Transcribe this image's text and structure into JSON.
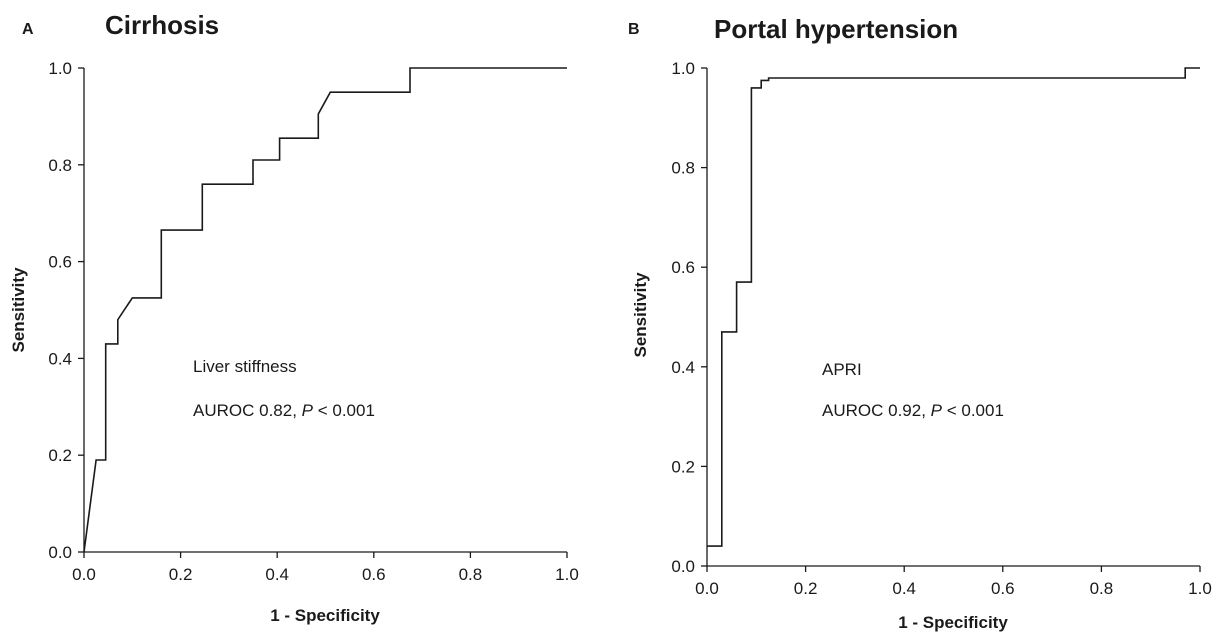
{
  "chart_data": [
    {
      "type": "line",
      "panel": "A",
      "title": "Cirrhosis",
      "xlabel": "1 - Specificity",
      "ylabel": "Sensitivity",
      "xlim": [
        0,
        1
      ],
      "ylim": [
        0,
        1
      ],
      "xticks": [
        "0.0",
        "0.2",
        "0.4",
        "0.6",
        "0.8",
        "1.0"
      ],
      "yticks": [
        "0.0",
        "0.2",
        "0.4",
        "0.6",
        "0.8",
        "1.0"
      ],
      "annotation": {
        "line1": "Liver stiffness",
        "prefix": "AUROC 0.82, ",
        "p": "P",
        "suffix": " < 0.001"
      },
      "series": [
        {
          "x": [
            0.0,
            0.025,
            0.045,
            0.045,
            0.07,
            0.07,
            0.1,
            0.16,
            0.16,
            0.245,
            0.245,
            0.35,
            0.35,
            0.405,
            0.405,
            0.485,
            0.485,
            0.51,
            0.51,
            0.675,
            0.675,
            1.0
          ],
          "y": [
            0.0,
            0.19,
            0.19,
            0.43,
            0.43,
            0.48,
            0.525,
            0.525,
            0.665,
            0.665,
            0.76,
            0.76,
            0.81,
            0.81,
            0.855,
            0.855,
            0.905,
            0.95,
            0.95,
            0.95,
            1.0,
            1.0
          ]
        }
      ]
    },
    {
      "type": "line",
      "panel": "B",
      "title": "Portal hypertension",
      "xlabel": "1 - Specificity",
      "ylabel": "Sensitivity",
      "xlim": [
        0,
        1
      ],
      "ylim": [
        0,
        1
      ],
      "xticks": [
        "0.0",
        "0.2",
        "0.4",
        "0.6",
        "0.8",
        "1.0"
      ],
      "yticks": [
        "0.0",
        "0.2",
        "0.4",
        "0.6",
        "0.8",
        "1.0"
      ],
      "annotation": {
        "line1": "APRI",
        "prefix": "AUROC 0.92, ",
        "p": "P",
        "suffix": " < 0.001"
      },
      "series": [
        {
          "x": [
            0.0,
            0.03,
            0.03,
            0.06,
            0.06,
            0.09,
            0.09,
            0.11,
            0.11,
            0.125,
            0.125,
            0.97,
            0.97,
            1.0
          ],
          "y": [
            0.04,
            0.04,
            0.47,
            0.47,
            0.57,
            0.57,
            0.96,
            0.96,
            0.975,
            0.975,
            0.98,
            0.98,
            1.0,
            1.0
          ]
        }
      ]
    }
  ]
}
